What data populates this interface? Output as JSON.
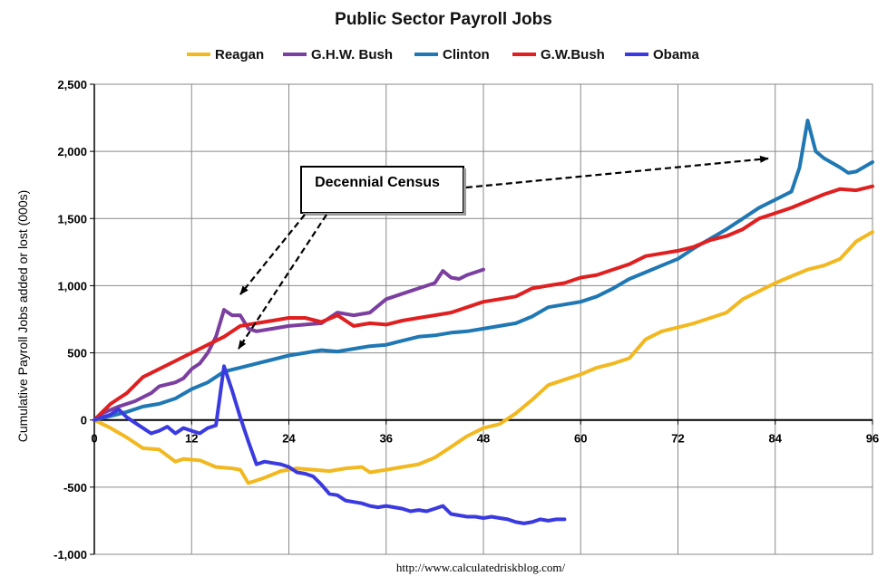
{
  "chart_data": {
    "type": "line",
    "title": "Public Sector Payroll Jobs",
    "ylabel": "Cumulative Payroll Jobs added or lost (000s)",
    "xlabel": "",
    "xlim": [
      0,
      96
    ],
    "ylim": [
      -1000,
      2500
    ],
    "x_ticks": [
      0,
      12,
      24,
      36,
      48,
      60,
      72,
      84,
      96
    ],
    "y_ticks": [
      -1000,
      -500,
      0,
      500,
      1000,
      1500,
      2000,
      2500
    ],
    "y_tick_labels": [
      "-1,000",
      "-500",
      "0",
      "500",
      "1,000",
      "1,500",
      "2,000",
      "2,500"
    ],
    "grid": true,
    "legend_position": "top",
    "series": [
      {
        "name": "Reagan",
        "color": "#f2b81f",
        "points": [
          [
            0,
            0
          ],
          [
            2,
            -60
          ],
          [
            4,
            -130
          ],
          [
            6,
            -210
          ],
          [
            8,
            -220
          ],
          [
            10,
            -310
          ],
          [
            11,
            -290
          ],
          [
            13,
            -300
          ],
          [
            15,
            -350
          ],
          [
            17,
            -360
          ],
          [
            18,
            -370
          ],
          [
            19,
            -470
          ],
          [
            21,
            -430
          ],
          [
            23,
            -380
          ],
          [
            25,
            -360
          ],
          [
            27,
            -370
          ],
          [
            29,
            -380
          ],
          [
            31,
            -360
          ],
          [
            33,
            -350
          ],
          [
            34,
            -390
          ],
          [
            36,
            -370
          ],
          [
            38,
            -350
          ],
          [
            40,
            -330
          ],
          [
            42,
            -280
          ],
          [
            44,
            -200
          ],
          [
            46,
            -120
          ],
          [
            48,
            -60
          ],
          [
            50,
            -30
          ],
          [
            52,
            50
          ],
          [
            54,
            150
          ],
          [
            56,
            260
          ],
          [
            58,
            300
          ],
          [
            60,
            340
          ],
          [
            62,
            390
          ],
          [
            64,
            420
          ],
          [
            66,
            460
          ],
          [
            68,
            600
          ],
          [
            70,
            660
          ],
          [
            72,
            690
          ],
          [
            74,
            720
          ],
          [
            76,
            760
          ],
          [
            78,
            800
          ],
          [
            80,
            900
          ],
          [
            82,
            960
          ],
          [
            84,
            1020
          ],
          [
            86,
            1070
          ],
          [
            88,
            1120
          ],
          [
            90,
            1150
          ],
          [
            92,
            1200
          ],
          [
            94,
            1330
          ],
          [
            96,
            1400
          ]
        ]
      },
      {
        "name": "G.H.W. Bush",
        "color": "#7b3fa0",
        "points": [
          [
            0,
            0
          ],
          [
            1,
            50
          ],
          [
            3,
            100
          ],
          [
            5,
            140
          ],
          [
            7,
            200
          ],
          [
            8,
            250
          ],
          [
            10,
            280
          ],
          [
            11,
            310
          ],
          [
            12,
            380
          ],
          [
            13,
            420
          ],
          [
            14,
            500
          ],
          [
            15,
            620
          ],
          [
            16,
            820
          ],
          [
            17,
            780
          ],
          [
            18,
            780
          ],
          [
            19,
            680
          ],
          [
            20,
            660
          ],
          [
            22,
            680
          ],
          [
            24,
            700
          ],
          [
            26,
            710
          ],
          [
            28,
            720
          ],
          [
            30,
            800
          ],
          [
            32,
            780
          ],
          [
            34,
            800
          ],
          [
            36,
            900
          ],
          [
            38,
            940
          ],
          [
            40,
            980
          ],
          [
            42,
            1020
          ],
          [
            43,
            1110
          ],
          [
            44,
            1060
          ],
          [
            45,
            1050
          ],
          [
            46,
            1080
          ],
          [
            48,
            1120
          ]
        ]
      },
      {
        "name": "Clinton",
        "color": "#1f78b4",
        "points": [
          [
            0,
            0
          ],
          [
            2,
            30
          ],
          [
            4,
            60
          ],
          [
            6,
            100
          ],
          [
            8,
            120
          ],
          [
            10,
            160
          ],
          [
            12,
            230
          ],
          [
            14,
            280
          ],
          [
            16,
            360
          ],
          [
            18,
            390
          ],
          [
            20,
            420
          ],
          [
            22,
            450
          ],
          [
            24,
            480
          ],
          [
            26,
            500
          ],
          [
            28,
            520
          ],
          [
            30,
            510
          ],
          [
            32,
            530
          ],
          [
            34,
            550
          ],
          [
            36,
            560
          ],
          [
            38,
            590
          ],
          [
            40,
            620
          ],
          [
            42,
            630
          ],
          [
            44,
            650
          ],
          [
            46,
            660
          ],
          [
            48,
            680
          ],
          [
            50,
            700
          ],
          [
            52,
            720
          ],
          [
            54,
            770
          ],
          [
            56,
            840
          ],
          [
            58,
            860
          ],
          [
            60,
            880
          ],
          [
            62,
            920
          ],
          [
            64,
            980
          ],
          [
            66,
            1050
          ],
          [
            68,
            1100
          ],
          [
            70,
            1150
          ],
          [
            72,
            1200
          ],
          [
            74,
            1280
          ],
          [
            76,
            1350
          ],
          [
            78,
            1420
          ],
          [
            80,
            1500
          ],
          [
            82,
            1580
          ],
          [
            84,
            1640
          ],
          [
            86,
            1700
          ],
          [
            87,
            1880
          ],
          [
            88,
            2230
          ],
          [
            89,
            2000
          ],
          [
            90,
            1950
          ],
          [
            92,
            1880
          ],
          [
            93,
            1840
          ],
          [
            94,
            1850
          ],
          [
            96,
            1920
          ]
        ]
      },
      {
        "name": "G.W.Bush",
        "color": "#e02020",
        "points": [
          [
            0,
            0
          ],
          [
            2,
            120
          ],
          [
            4,
            200
          ],
          [
            6,
            320
          ],
          [
            8,
            380
          ],
          [
            10,
            440
          ],
          [
            12,
            500
          ],
          [
            14,
            560
          ],
          [
            16,
            620
          ],
          [
            18,
            700
          ],
          [
            20,
            720
          ],
          [
            22,
            740
          ],
          [
            24,
            760
          ],
          [
            26,
            760
          ],
          [
            28,
            730
          ],
          [
            30,
            780
          ],
          [
            32,
            700
          ],
          [
            34,
            720
          ],
          [
            36,
            710
          ],
          [
            38,
            740
          ],
          [
            40,
            760
          ],
          [
            42,
            780
          ],
          [
            44,
            800
          ],
          [
            46,
            840
          ],
          [
            48,
            880
          ],
          [
            50,
            900
          ],
          [
            52,
            920
          ],
          [
            54,
            980
          ],
          [
            56,
            1000
          ],
          [
            58,
            1020
          ],
          [
            60,
            1060
          ],
          [
            62,
            1080
          ],
          [
            64,
            1120
          ],
          [
            66,
            1160
          ],
          [
            68,
            1220
          ],
          [
            70,
            1240
          ],
          [
            72,
            1260
          ],
          [
            74,
            1290
          ],
          [
            76,
            1340
          ],
          [
            78,
            1370
          ],
          [
            80,
            1420
          ],
          [
            82,
            1500
          ],
          [
            84,
            1540
          ],
          [
            86,
            1580
          ],
          [
            88,
            1630
          ],
          [
            90,
            1680
          ],
          [
            92,
            1720
          ],
          [
            94,
            1710
          ],
          [
            96,
            1740
          ]
        ]
      },
      {
        "name": "Obama",
        "color": "#3a3ae0",
        "points": [
          [
            0,
            0
          ],
          [
            1,
            20
          ],
          [
            2,
            40
          ],
          [
            3,
            80
          ],
          [
            4,
            20
          ],
          [
            5,
            -20
          ],
          [
            6,
            -60
          ],
          [
            7,
            -100
          ],
          [
            8,
            -80
          ],
          [
            9,
            -50
          ],
          [
            10,
            -100
          ],
          [
            11,
            -60
          ],
          [
            12,
            -80
          ],
          [
            13,
            -100
          ],
          [
            14,
            -60
          ],
          [
            15,
            -40
          ],
          [
            16,
            400
          ],
          [
            17,
            220
          ],
          [
            18,
            20
          ],
          [
            19,
            -160
          ],
          [
            20,
            -330
          ],
          [
            21,
            -310
          ],
          [
            22,
            -320
          ],
          [
            23,
            -330
          ],
          [
            24,
            -350
          ],
          [
            25,
            -390
          ],
          [
            26,
            -400
          ],
          [
            27,
            -420
          ],
          [
            28,
            -480
          ],
          [
            29,
            -550
          ],
          [
            30,
            -560
          ],
          [
            31,
            -600
          ],
          [
            32,
            -610
          ],
          [
            33,
            -620
          ],
          [
            34,
            -640
          ],
          [
            35,
            -650
          ],
          [
            36,
            -640
          ],
          [
            37,
            -650
          ],
          [
            38,
            -660
          ],
          [
            39,
            -680
          ],
          [
            40,
            -670
          ],
          [
            41,
            -680
          ],
          [
            42,
            -660
          ],
          [
            43,
            -640
          ],
          [
            44,
            -700
          ],
          [
            45,
            -710
          ],
          [
            46,
            -720
          ],
          [
            47,
            -720
          ],
          [
            48,
            -730
          ],
          [
            49,
            -720
          ],
          [
            50,
            -730
          ],
          [
            51,
            -740
          ],
          [
            52,
            -760
          ],
          [
            53,
            -770
          ],
          [
            54,
            -760
          ],
          [
            55,
            -740
          ],
          [
            56,
            -750
          ],
          [
            57,
            -740
          ],
          [
            58,
            -740
          ]
        ]
      }
    ],
    "annotations": [
      {
        "text": "Decennial Census"
      }
    ],
    "source": "http://www.calculatedriskblog.com/"
  }
}
